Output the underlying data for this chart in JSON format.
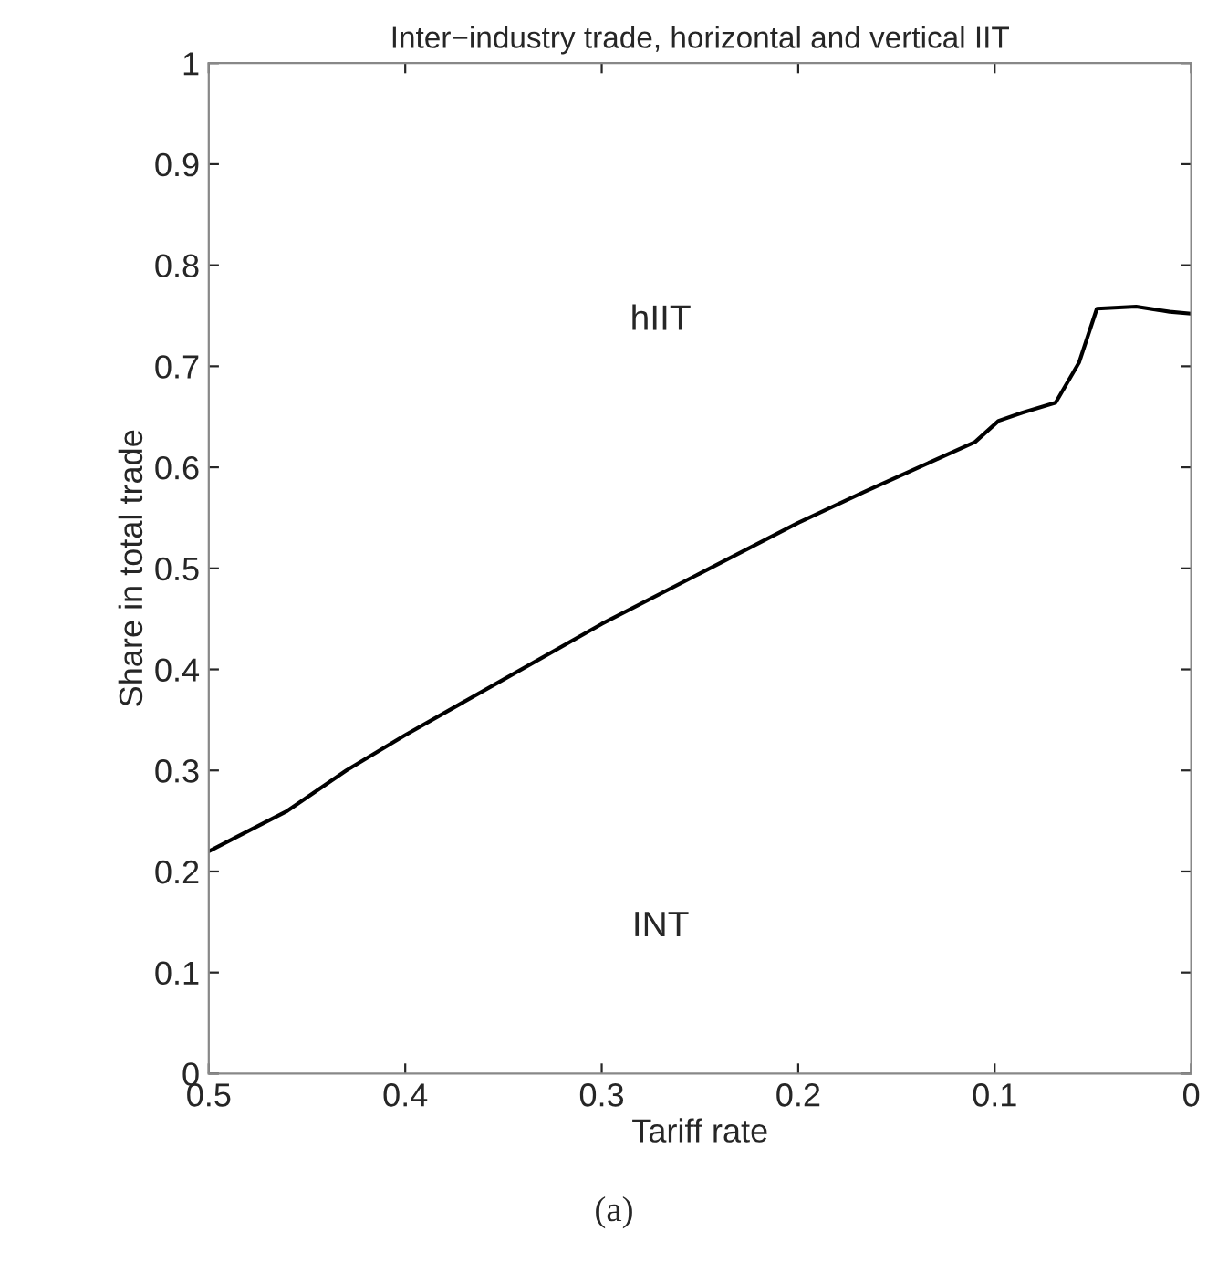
{
  "chart_data": {
    "type": "line",
    "title": "Inter−industry trade, horizontal and vertical IIT",
    "xlabel": "Tariff rate",
    "ylabel": "Share in total trade",
    "annotations": [
      "hIIT",
      "INT",
      "(a)"
    ],
    "x": [
      0.5,
      0.46,
      0.43,
      0.4,
      0.35,
      0.3,
      0.25,
      0.2,
      0.166,
      0.11,
      0.098,
      0.086,
      0.069,
      0.057,
      0.048,
      0.028,
      0.011,
      0
    ],
    "series": [
      {
        "color": "#000000",
        "values": [
          0.22,
          0.26,
          0.3,
          0.335,
          0.39,
          0.445,
          0.495,
          0.545,
          0.576,
          0.625,
          0.646,
          0.654,
          0.664,
          0.704,
          0.757,
          0.759,
          0.754,
          0.752
        ]
      }
    ],
    "xlim": [
      0.5,
      0
    ],
    "ylim": [
      0,
      1
    ],
    "xticks": [
      0.5,
      0.4,
      0.3,
      0.2,
      0.1,
      0
    ],
    "yticks": [
      0,
      0.1,
      0.2,
      0.3,
      0.4,
      0.5,
      0.6,
      0.7,
      0.8,
      0.9,
      1
    ],
    "grid": false,
    "marker": "none",
    "line_style": "solid"
  }
}
